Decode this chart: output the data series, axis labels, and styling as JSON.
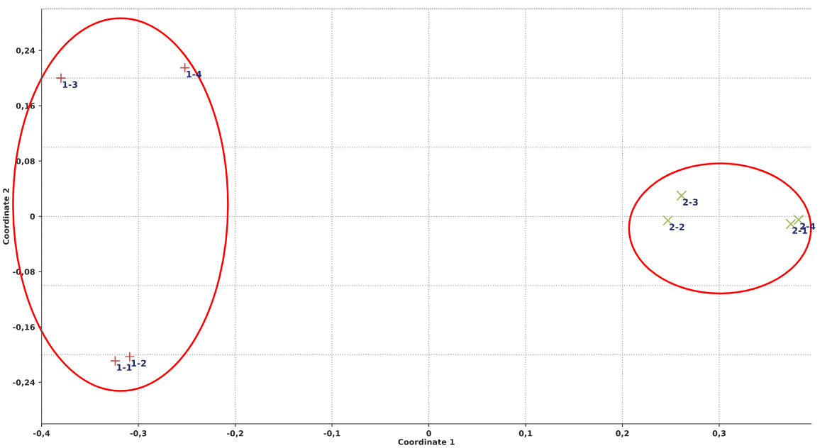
{
  "chart_data": {
    "type": "scatter",
    "xlabel": "Coordinate 1",
    "ylabel": "Coordinate 2",
    "xlim": [
      -0.4,
      0.395
    ],
    "ylim": [
      -0.3,
      0.3
    ],
    "xticks": [
      {
        "value": -0.4,
        "label": "-0,4"
      },
      {
        "value": -0.3,
        "label": "-0,3"
      },
      {
        "value": -0.2,
        "label": "-0,2"
      },
      {
        "value": -0.1,
        "label": "-0,1"
      },
      0,
      {
        "value": 0.1,
        "label": "0,1"
      },
      {
        "value": 0.2,
        "label": "0,2"
      },
      {
        "value": 0.3,
        "label": "0,3"
      }
    ],
    "yticks": [
      {
        "value": -0.24,
        "label": "-0,24"
      },
      {
        "value": -0.16,
        "label": "-0,16"
      },
      {
        "value": -0.08,
        "label": "-0,08"
      },
      0,
      {
        "value": 0.08,
        "label": "0,08"
      },
      {
        "value": 0.16,
        "label": "0,16"
      },
      {
        "value": 0.24,
        "label": "0,24"
      }
    ],
    "grid": "x",
    "ref_lines": [
      {
        "axis": "y",
        "value": 0.2,
        "color": "#a6a6a6",
        "line_style": "dotted"
      },
      {
        "axis": "y",
        "value": 0.1,
        "color": "#a6a6a6",
        "line_style": "dotted"
      },
      {
        "axis": "y",
        "value": 0,
        "color": "#a6a6a6",
        "line_style": "dotted"
      },
      {
        "axis": "y",
        "value": -0.1,
        "color": "#a6a6a6",
        "line_style": "dotted"
      },
      {
        "axis": "y",
        "value": -0.2,
        "color": "#a6a6a6",
        "line_style": "dotted"
      }
    ],
    "series": [
      {
        "color": "#c0504d",
        "marker": "plus",
        "x": [
          -0.324,
          -0.309,
          -0.38,
          -0.252
        ],
        "values": [
          -0.209,
          -0.203,
          0.2,
          0.215
        ]
      },
      {
        "color": "#9bbb59",
        "marker": "cross",
        "x": [
          0.374,
          0.247,
          0.261,
          0.382
        ],
        "values": [
          -0.011,
          -0.006,
          0.03,
          -0.005
        ]
      }
    ],
    "annotations": [
      {
        "text": "1-1",
        "x": -0.324,
        "y": -0.209
      },
      {
        "text": "1-2",
        "x": -0.309,
        "y": -0.203
      },
      {
        "text": "1-3",
        "x": -0.38,
        "y": 0.2
      },
      {
        "text": "1-4",
        "x": -0.252,
        "y": 0.215
      },
      {
        "text": "2-1",
        "x": 0.374,
        "y": -0.011
      },
      {
        "text": "2-2",
        "x": 0.247,
        "y": -0.006
      },
      {
        "text": "2-3",
        "x": 0.261,
        "y": 0.03
      },
      {
        "text": "2-4",
        "x": 0.382,
        "y": -0.005
      }
    ]
  }
}
